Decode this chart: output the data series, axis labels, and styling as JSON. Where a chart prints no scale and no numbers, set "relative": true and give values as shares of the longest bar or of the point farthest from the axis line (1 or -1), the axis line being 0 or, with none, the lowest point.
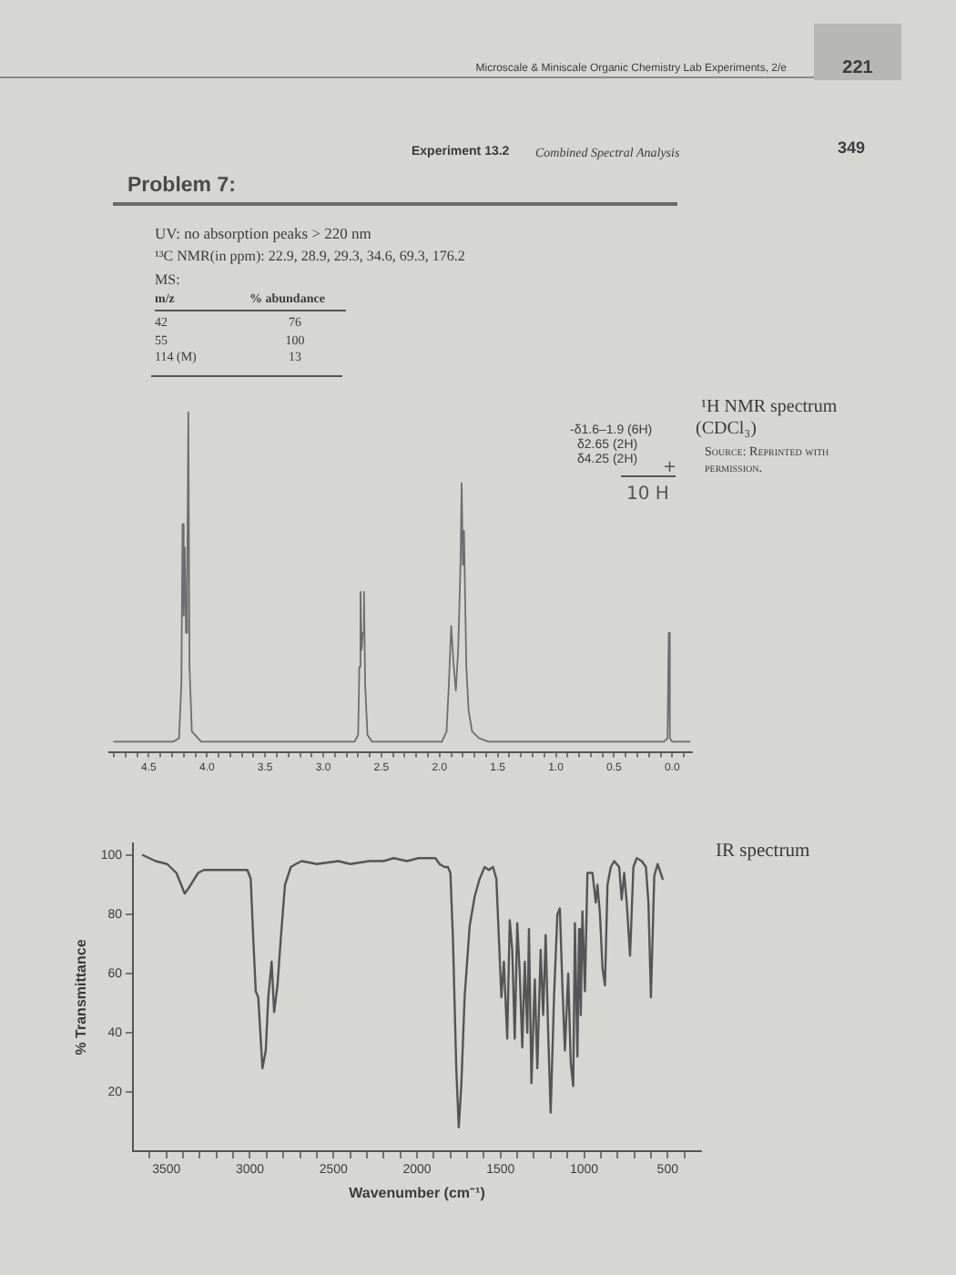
{
  "chart_data": [
    {
      "type": "line",
      "title": "¹H NMR spectrum",
      "subtitle": "(CDCl₃)",
      "annotations": [
        "Microscale & Miniscale Organic Chemistry Lab Experiments, 2/e",
        "221",
        "Experiment 13.2",
        "Combined Spectral Analysis",
        "349",
        "Problem 7:",
        "UV: no absorption peaks > 220 nm",
        "¹³C NMR(in ppm): 22.9, 28.9, 29.3, 34.6, 69.3, 176.2",
        "MS:",
        "m/z",
        "% abundance",
        "42",
        "76",
        "55",
        "100",
        "114 (M)",
        "13",
        "-δ1.6–1.9 (6H)",
        "δ2.65 (2H)",
        "δ4.25 (2H)",
        "+",
        "10 H",
        "Source: Reprinted with permission."
      ],
      "relative": true,
      "xlim": [
        4.84,
        -0.17
      ],
      "xticks": [
        {
          "value": 4.8,
          "label": null
        },
        {
          "value": 4.7,
          "label": null
        },
        {
          "value": 4.6,
          "label": null
        },
        4.5,
        {
          "value": 4.4,
          "label": null
        },
        {
          "value": 4.3,
          "label": null
        },
        {
          "value": 4.2,
          "label": null
        },
        {
          "value": 4.1,
          "label": null
        },
        {
          "value": 4,
          "label": "4.0"
        },
        {
          "value": 3.9,
          "label": null
        },
        {
          "value": 3.8,
          "label": null
        },
        {
          "value": 3.7,
          "label": null
        },
        {
          "value": 3.6,
          "label": null
        },
        3.5,
        {
          "value": 3.4,
          "label": null
        },
        {
          "value": 3.3,
          "label": null
        },
        {
          "value": 3.2,
          "label": null
        },
        {
          "value": 3.1,
          "label": null
        },
        {
          "value": 3,
          "label": "3.0"
        },
        {
          "value": 2.9,
          "label": null
        },
        {
          "value": 2.8,
          "label": null
        },
        {
          "value": 2.7,
          "label": null
        },
        {
          "value": 2.6,
          "label": null
        },
        2.5,
        {
          "value": 2.4,
          "label": null
        },
        {
          "value": 2.3,
          "label": null
        },
        {
          "value": 2.2,
          "label": null
        },
        {
          "value": 2.1,
          "label": null
        },
        {
          "value": 2,
          "label": "2.0"
        },
        {
          "value": 1.9,
          "label": null
        },
        {
          "value": 1.8,
          "label": null
        },
        {
          "value": 1.7,
          "label": null
        },
        {
          "value": 1.6,
          "label": null
        },
        1.5,
        {
          "value": 1.4,
          "label": null
        },
        {
          "value": 1.3,
          "label": null
        },
        {
          "value": 1.2,
          "label": null
        },
        {
          "value": 1.1,
          "label": null
        },
        {
          "value": 1,
          "label": "1.0"
        },
        {
          "value": 0.9,
          "label": null
        },
        {
          "value": 0.8,
          "label": null
        },
        {
          "value": 0.7,
          "label": null
        },
        {
          "value": 0.6,
          "label": null
        },
        0.5,
        {
          "value": 0.4,
          "label": null
        },
        {
          "value": 0.3,
          "label": null
        },
        {
          "value": 0.2,
          "label": null
        },
        {
          "value": 0.1,
          "label": null
        },
        {
          "value": 0,
          "label": "0.0"
        },
        {
          "value": -0.1,
          "label": null
        }
      ],
      "x": [
        4.8,
        4.29,
        4.24,
        4.22,
        4.21,
        4.2,
        4.19,
        4.18,
        4.17,
        4.16,
        4.15,
        4.13,
        4.05,
        2.73,
        2.7,
        2.69,
        2.68,
        2.67,
        2.66,
        2.65,
        2.64,
        2.62,
        2.58,
        1.98,
        1.94,
        1.92,
        1.9,
        1.88,
        1.86,
        1.84,
        1.82,
        1.81,
        1.8,
        1.79,
        1.77,
        1.75,
        1.72,
        1.66,
        1.58,
        0.07,
        0.04,
        0.03,
        0.02,
        0.0,
        -0.15
      ],
      "values": [
        0.03,
        0.03,
        0.04,
        0.2,
        0.67,
        0.4,
        0.6,
        0.35,
        0.5,
        1.0,
        0.25,
        0.06,
        0.03,
        0.03,
        0.05,
        0.25,
        0.47,
        0.3,
        0.35,
        0.47,
        0.2,
        0.05,
        0.03,
        0.03,
        0.06,
        0.2,
        0.37,
        0.26,
        0.18,
        0.3,
        0.55,
        0.79,
        0.55,
        0.65,
        0.25,
        0.12,
        0.06,
        0.04,
        0.03,
        0.03,
        0.04,
        0.35,
        0.04,
        0.03,
        0.03
      ],
      "color": "#6e6e6e"
    },
    {
      "type": "line",
      "annotations": [
        "IR spectrum"
      ],
      "xlabel": "Wavenumber (cm⁻¹)",
      "ylabel": "% Transmittance",
      "xlim": [
        3700,
        300
      ],
      "xticks": [
        {
          "value": 3600,
          "label": null
        },
        3500,
        {
          "value": 3400,
          "label": null
        },
        {
          "value": 3300,
          "label": null
        },
        {
          "value": 3200,
          "label": null
        },
        {
          "value": 3100,
          "label": null
        },
        3000,
        {
          "value": 2900,
          "label": null
        },
        {
          "value": 2800,
          "label": null
        },
        {
          "value": 2700,
          "label": null
        },
        {
          "value": 2600,
          "label": null
        },
        2500,
        {
          "value": 2400,
          "label": null
        },
        {
          "value": 2300,
          "label": null
        },
        {
          "value": 2200,
          "label": null
        },
        {
          "value": 2100,
          "label": null
        },
        2000,
        {
          "value": 1900,
          "label": null
        },
        {
          "value": 1800,
          "label": null
        },
        {
          "value": 1700,
          "label": null
        },
        {
          "value": 1600,
          "label": null
        },
        1500,
        {
          "value": 1400,
          "label": null
        },
        {
          "value": 1300,
          "label": null
        },
        {
          "value": 1200,
          "label": null
        },
        {
          "value": 1100,
          "label": null
        },
        1000,
        {
          "value": 900,
          "label": null
        },
        {
          "value": 800,
          "label": null
        },
        {
          "value": 700,
          "label": null
        },
        {
          "value": 600,
          "label": null
        },
        500,
        {
          "value": 400,
          "label": null
        }
      ],
      "ylim": [
        0,
        104
      ],
      "yticks": [
        20,
        40,
        60,
        80,
        100
      ],
      "x": [
        3640,
        3565,
        3495,
        3440,
        3390,
        3365,
        3310,
        3275,
        3015,
        2995,
        2980,
        2965,
        2950,
        2925,
        2905,
        2890,
        2870,
        2855,
        2835,
        2815,
        2790,
        2755,
        2725,
        2690,
        2600,
        2470,
        2400,
        2285,
        2200,
        2140,
        2060,
        1990,
        1890,
        1865,
        1835,
        1815,
        1800,
        1785,
        1765,
        1750,
        1735,
        1715,
        1685,
        1655,
        1625,
        1595,
        1570,
        1545,
        1525,
        1510,
        1495,
        1480,
        1460,
        1445,
        1430,
        1415,
        1400,
        1385,
        1370,
        1355,
        1340,
        1330,
        1315,
        1295,
        1280,
        1260,
        1245,
        1230,
        1215,
        1200,
        1180,
        1160,
        1145,
        1130,
        1115,
        1095,
        1080,
        1065,
        1055,
        1040,
        1030,
        1020,
        1010,
        995,
        980,
        950,
        930,
        920,
        905,
        890,
        875,
        860,
        840,
        820,
        790,
        775,
        760,
        745,
        725,
        705,
        685,
        655,
        630,
        615,
        600,
        580,
        560,
        530
      ],
      "values": [
        100,
        98,
        97,
        94,
        87,
        89,
        94,
        95,
        95,
        92,
        72,
        54,
        52,
        28,
        34,
        52,
        64,
        47,
        56,
        72,
        90,
        96,
        97,
        98,
        97,
        98,
        97,
        98,
        98,
        99,
        98,
        99,
        99,
        97,
        96,
        96,
        94,
        72,
        28,
        8,
        22,
        52,
        76,
        86,
        92,
        96,
        95,
        96,
        92,
        72,
        52,
        64,
        38,
        78,
        68,
        38,
        77,
        60,
        35,
        64,
        40,
        75,
        23,
        58,
        28,
        68,
        46,
        73,
        40,
        13,
        52,
        80,
        82,
        56,
        34,
        60,
        30,
        22,
        77,
        32,
        75,
        46,
        81,
        54,
        94,
        94,
        84,
        90,
        80,
        62,
        56,
        90,
        96,
        98,
        96,
        85,
        94,
        84,
        66,
        96,
        99,
        98,
        96,
        84,
        52,
        93,
        97,
        92
      ],
      "color": "#555555"
    }
  ]
}
